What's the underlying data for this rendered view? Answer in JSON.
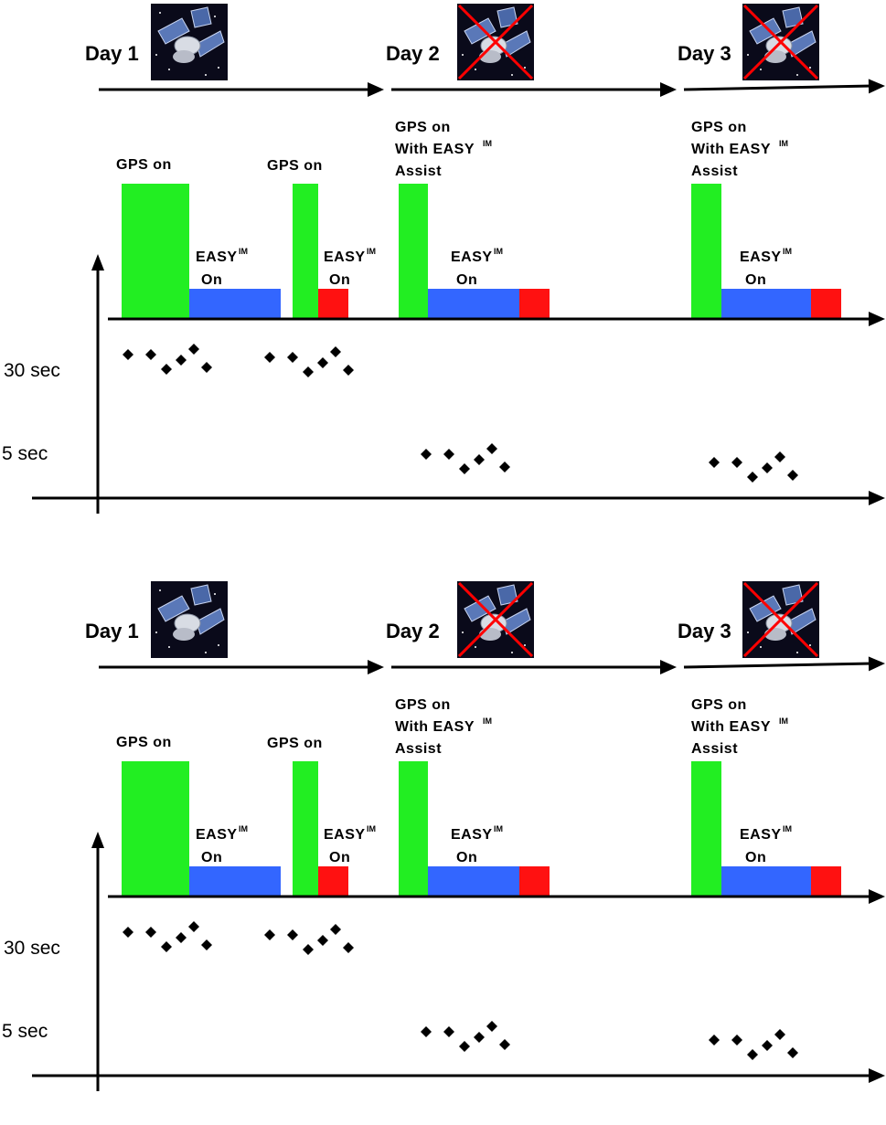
{
  "days": [
    "Day 1",
    "Day 2",
    "Day 3"
  ],
  "gps_on": "GPS on",
  "gps_assist": [
    "GPS on",
    "With EASY",
    "Assist"
  ],
  "easy": "EASY",
  "easy_sup": "IM",
  "on": "On",
  "y_labels": [
    "30 sec",
    "5 sec"
  ],
  "colors": {
    "gps": "#22ee22",
    "easy": "#3366ff",
    "warn": "#ff1111",
    "cross": "#ff0000"
  },
  "icons": [
    "satellite-icon",
    "satellite-crossed-icon",
    "satellite-crossed-icon"
  ]
}
